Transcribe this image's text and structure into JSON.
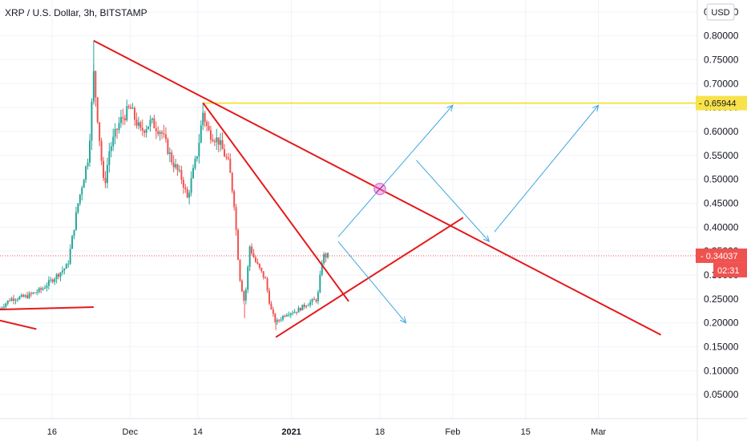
{
  "header": {
    "title": "XRP / U.S. Dollar, 3h, BITSTAMP",
    "currency_button": "USD"
  },
  "colors": {
    "candle_up": "#26a69a",
    "candle_down": "#ef5350",
    "trendline": "#e5191b",
    "resistance": "#f7e24a",
    "projection": "#3fa6e0",
    "last_price_badge": "#ef5350",
    "resistance_badge": "#f7e24a",
    "marker": "#e07ad4"
  },
  "price_labels": {
    "resistance": "0.65944",
    "last_price": "0.34037",
    "countdown": "02:31"
  },
  "chart_data": {
    "type": "candlestick",
    "symbol": "XRP / U.S. Dollar",
    "interval": "3h",
    "exchange": "BITSTAMP",
    "x_ticks": [
      {
        "label": "16",
        "date": "2020-11-16"
      },
      {
        "label": "Dec",
        "date": "2020-12-01"
      },
      {
        "label": "14",
        "date": "2020-12-14"
      },
      {
        "label": "2021",
        "date": "2021-01-01",
        "bold": true
      },
      {
        "label": "18",
        "date": "2021-01-18"
      },
      {
        "label": "Feb",
        "date": "2021-02-01"
      },
      {
        "label": "15",
        "date": "2021-02-15"
      },
      {
        "label": "Mar",
        "date": "2021-03-01"
      }
    ],
    "y_ticks": [
      0.05,
      0.1,
      0.15,
      0.2,
      0.25,
      0.3,
      0.35,
      0.4,
      0.45,
      0.5,
      0.55,
      0.6,
      0.65,
      0.7,
      0.75,
      0.8,
      0.85
    ],
    "ylim": [
      0.0,
      0.875
    ],
    "xlim": [
      "2020-11-06",
      "2021-03-20"
    ],
    "price_path": [
      {
        "date": "2020-11-06",
        "price": 0.23
      },
      {
        "date": "2020-11-08",
        "price": 0.25
      },
      {
        "date": "2020-11-11",
        "price": 0.255
      },
      {
        "date": "2020-11-14",
        "price": 0.27
      },
      {
        "date": "2020-11-17",
        "price": 0.3
      },
      {
        "date": "2020-11-19",
        "price": 0.32
      },
      {
        "date": "2020-11-21",
        "price": 0.45
      },
      {
        "date": "2020-11-23",
        "price": 0.55
      },
      {
        "date": "2020-11-24",
        "price": 0.72
      },
      {
        "date": "2020-11-25",
        "price": 0.6
      },
      {
        "date": "2020-11-26",
        "price": 0.48
      },
      {
        "date": "2020-11-27",
        "price": 0.56
      },
      {
        "date": "2020-11-29",
        "price": 0.62
      },
      {
        "date": "2020-12-01",
        "price": 0.65
      },
      {
        "date": "2020-12-03",
        "price": 0.6
      },
      {
        "date": "2020-12-05",
        "price": 0.62
      },
      {
        "date": "2020-12-07",
        "price": 0.6
      },
      {
        "date": "2020-12-09",
        "price": 0.54
      },
      {
        "date": "2020-12-11",
        "price": 0.5
      },
      {
        "date": "2020-12-12",
        "price": 0.46
      },
      {
        "date": "2020-12-14",
        "price": 0.56
      },
      {
        "date": "2020-12-15",
        "price": 0.64
      },
      {
        "date": "2020-12-16",
        "price": 0.6
      },
      {
        "date": "2020-12-18",
        "price": 0.58
      },
      {
        "date": "2020-12-20",
        "price": 0.53
      },
      {
        "date": "2020-12-21",
        "price": 0.45
      },
      {
        "date": "2020-12-22",
        "price": 0.3
      },
      {
        "date": "2020-12-23",
        "price": 0.24
      },
      {
        "date": "2020-12-24",
        "price": 0.36
      },
      {
        "date": "2020-12-25",
        "price": 0.33
      },
      {
        "date": "2020-12-27",
        "price": 0.29
      },
      {
        "date": "2020-12-28",
        "price": 0.23
      },
      {
        "date": "2020-12-29",
        "price": 0.2
      },
      {
        "date": "2020-12-31",
        "price": 0.22
      },
      {
        "date": "2021-01-02",
        "price": 0.225
      },
      {
        "date": "2021-01-04",
        "price": 0.24
      },
      {
        "date": "2021-01-06",
        "price": 0.25
      },
      {
        "date": "2021-01-07",
        "price": 0.34
      },
      {
        "date": "2021-01-08",
        "price": 0.34037
      }
    ],
    "wick_extremes": [
      {
        "date": "2020-11-24",
        "high": 0.79
      },
      {
        "date": "2020-12-15",
        "high": 0.66
      },
      {
        "date": "2020-12-23",
        "low": 0.21
      },
      {
        "date": "2020-12-29",
        "low": 0.185
      }
    ],
    "annotations": {
      "resistance_level": 0.65944,
      "last_price": 0.34037,
      "trendlines": [
        {
          "from": {
            "date": "2020-11-24",
            "price": 0.79
          },
          "to": {
            "date": "2021-03-13",
            "price": 0.175
          }
        },
        {
          "from": {
            "date": "2020-12-15",
            "price": 0.66
          },
          "to": {
            "date": "2021-01-12",
            "price": 0.245
          }
        },
        {
          "from": {
            "date": "2020-12-29",
            "price": 0.17
          },
          "to": {
            "date": "2021-02-03",
            "price": 0.42
          }
        },
        {
          "from": {
            "date": "2020-11-06",
            "price": 0.228
          },
          "to": {
            "date": "2020-11-24",
            "price": 0.233
          }
        },
        {
          "from": {
            "date": "2020-11-06",
            "price": 0.205
          },
          "to": {
            "date": "2020-11-13",
            "price": 0.187
          }
        }
      ],
      "projections": [
        {
          "from": {
            "date": "2021-01-10",
            "price": 0.37
          },
          "to": {
            "date": "2021-01-23",
            "price": 0.2
          }
        },
        {
          "from": {
            "date": "2021-01-10",
            "price": 0.38
          },
          "to": {
            "date": "2021-02-01",
            "price": 0.655
          }
        },
        {
          "from": {
            "date": "2021-01-25",
            "price": 0.54
          },
          "to": {
            "date": "2021-02-08",
            "price": 0.37
          }
        },
        {
          "from": {
            "date": "2021-02-09",
            "price": 0.39
          },
          "to": {
            "date": "2021-03-01",
            "price": 0.655
          }
        }
      ],
      "crossing_marker": {
        "date": "2021-01-18",
        "price": 0.48
      }
    }
  }
}
